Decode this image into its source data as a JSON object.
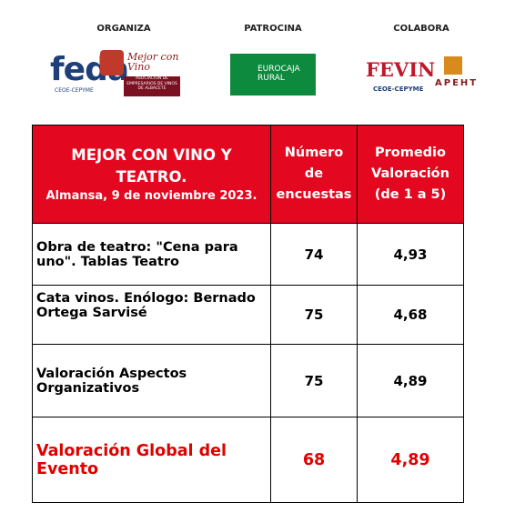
{
  "header": {
    "organiza": {
      "label": "ORGANIZA",
      "feda": "feda",
      "feda_sub": "CEOE-CEPYME",
      "mcv": "Mejor con Vino",
      "mcv_sub": "ASOCIACIÓN DE EMPRESARIOS DE VINOS DE ALBACETE"
    },
    "patrocina": {
      "label": "PATROCINA",
      "logo": "EUROCAJA RURAL"
    },
    "colabora": {
      "label": "COLABORA",
      "fevin": "FEVIN",
      "fevin_sub": "CEOE-CEPYME",
      "apeht": "APEHT"
    }
  },
  "table": {
    "title": "MEJOR CON VINO Y TEATRO.",
    "subtitle": "Almansa, 9 de noviembre 2023.",
    "columns": [
      "Número de encuestas",
      "Promedio Valoración (de 1 a 5)"
    ],
    "rows": [
      [
        "Obra de teatro: \"Cena para uno\". Tablas Teatro",
        "74",
        "4,93"
      ],
      [
        "Cata vinos. Enólogo: Bernado Ortega Sarvisé",
        "75",
        "4,68"
      ],
      [
        "Valoración Aspectos Organizativos",
        "75",
        "4,89"
      ],
      [
        "Valoración Global del Evento",
        "68",
        "4,89"
      ]
    ]
  }
}
